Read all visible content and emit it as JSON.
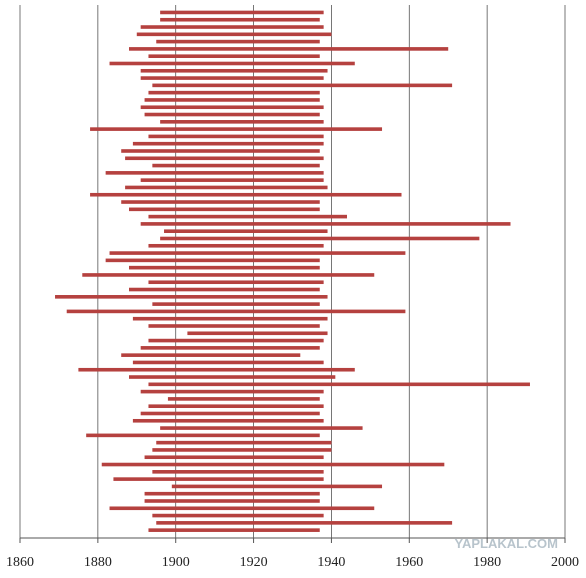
{
  "chart_data": {
    "type": "range_bar",
    "color": "#b5413f",
    "starts": [
      1896,
      1896,
      1891,
      1890,
      1895,
      1888,
      1893,
      1883,
      1891,
      1891,
      1894,
      1893,
      1892,
      1891,
      1892,
      1896,
      1878,
      1893,
      1889,
      1886,
      1887,
      1894,
      1882,
      1891,
      1887,
      1878,
      1886,
      1888,
      1893,
      1891,
      1897,
      1896,
      1893,
      1883,
      1882,
      1888,
      1876,
      1893,
      1888,
      1869,
      1894,
      1872,
      1889,
      1893,
      1903,
      1893,
      1891,
      1886,
      1889,
      1875,
      1888,
      1893,
      1891,
      1898,
      1893,
      1891,
      1889,
      1896,
      1877,
      1895,
      1894,
      1892,
      1881,
      1894,
      1884,
      1899,
      1892,
      1892,
      1883,
      1894,
      1895,
      1893
    ],
    "ends": [
      1938,
      1937,
      1938,
      1940,
      1937,
      1970,
      1937,
      1946,
      1939,
      1938,
      1971,
      1937,
      1937,
      1938,
      1937,
      1938,
      1953,
      1938,
      1938,
      1937,
      1938,
      1937,
      1938,
      1938,
      1939,
      1958,
      1937,
      1937,
      1944,
      1986,
      1939,
      1978,
      1938,
      1959,
      1937,
      1937,
      1951,
      1938,
      1937,
      1939,
      1937,
      1959,
      1939,
      1937,
      1939,
      1938,
      1937,
      1932,
      1938,
      1946,
      1941,
      1991,
      1938,
      1937,
      1938,
      1937,
      1938,
      1948,
      1937,
      1940,
      1940,
      1938,
      1969,
      1938,
      1938,
      1953,
      1937,
      1937,
      1951,
      1938,
      1971,
      1937
    ],
    "xlim": [
      1860,
      2000
    ],
    "xticks": [
      1860,
      1880,
      1900,
      1920,
      1940,
      1960,
      1980,
      2000
    ],
    "grid": true,
    "watermark": "YAPLAKAL.COM"
  }
}
